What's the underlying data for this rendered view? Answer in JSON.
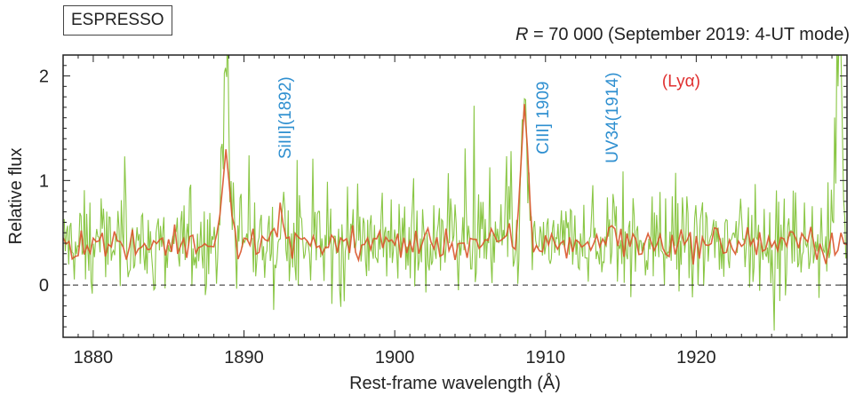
{
  "header": {
    "instrument": "ESPRESSO",
    "resolution_symbol": "R",
    "resolution_text": " = 70 000 (September 2019: 4-UT mode)"
  },
  "chart_data": {
    "type": "line",
    "title": "",
    "xlabel": "Rest-frame wavelength (Å)",
    "ylabel": "Relative flux",
    "xlim": [
      1878,
      1930
    ],
    "ylim": [
      -0.5,
      2.2
    ],
    "x_ticks": [
      1880,
      1890,
      1900,
      1910,
      1920
    ],
    "y_ticks": [
      0,
      1,
      2
    ],
    "reference_line": {
      "y": 0,
      "style": "dashed"
    },
    "grid": false,
    "colors": {
      "raw": "#7cc030",
      "binned": "#d9542a",
      "annotation_blue": "#2e8fd0",
      "annotation_red": "#e03030"
    },
    "series": [
      {
        "style": "noisy spectrum (raw)",
        "continuum_level": 0.4,
        "noise_amplitude": 0.5,
        "features": [
          {
            "x": 1888.8,
            "peak": 2.2
          },
          {
            "x": 1892.5,
            "peak": 0.75
          },
          {
            "x": 1908.6,
            "peak": 1.75
          },
          {
            "x": 1914.5,
            "peak": 0.65
          },
          {
            "x": 1929.5,
            "peak": 2.2
          }
        ]
      },
      {
        "style": "smoothed spectrum (binned)",
        "continuum_level": 0.4,
        "features": [
          {
            "x": 1888.8,
            "peak": 1.3
          },
          {
            "x": 1892.5,
            "peak": 0.7
          },
          {
            "x": 1908.6,
            "peak": 1.7
          },
          {
            "x": 1914.5,
            "peak": 0.6
          }
        ]
      }
    ],
    "annotations": [
      {
        "text": "SiIII](1892)",
        "x": 1893.1,
        "y": 1.6,
        "orientation": "vertical",
        "color": "annotation_blue"
      },
      {
        "text": "CIII] 1909",
        "x": 1910.2,
        "y": 1.6,
        "orientation": "vertical",
        "color": "annotation_blue"
      },
      {
        "text": "UV34(1914)",
        "x": 1914.8,
        "y": 1.6,
        "orientation": "vertical",
        "color": "annotation_blue"
      },
      {
        "text": "(Lyα)",
        "x": 1919.0,
        "y": 1.9,
        "orientation": "horizontal",
        "color": "annotation_red"
      }
    ]
  }
}
